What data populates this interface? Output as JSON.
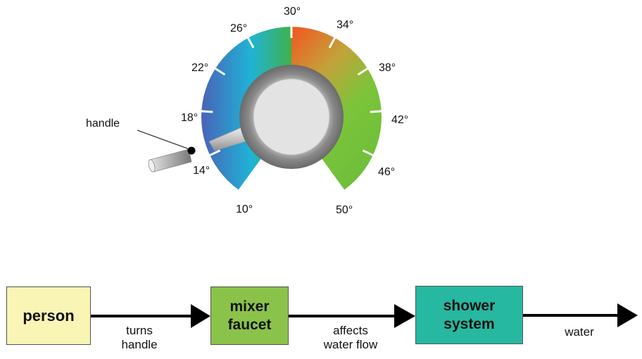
{
  "dial": {
    "handle_label": "handle",
    "ticks": [
      "10°",
      "14°",
      "18°",
      "22°",
      "26°",
      "30°",
      "34°",
      "38°",
      "42°",
      "46°",
      "50°"
    ],
    "colors": {
      "cool_blue": "#4a6fbd",
      "cyan": "#1fb8d8",
      "green": "#3fb24a",
      "orange": "#f06422",
      "lime": "#7cc43a",
      "knob": "#e0e0e0"
    }
  },
  "flow": {
    "person": {
      "label": "person",
      "color": "#f8f5b5"
    },
    "mixer": {
      "label_line1": "mixer",
      "label_line2": "faucet",
      "color": "#8bc34a"
    },
    "shower": {
      "label_line1": "shower",
      "label_line2": "system",
      "color": "#26b8a0"
    },
    "arrow1_label_line1": "turns",
    "arrow1_label_line2": "handle",
    "arrow2_label_line1": "affects",
    "arrow2_label_line2": "water flow",
    "arrow3_label": "water"
  }
}
